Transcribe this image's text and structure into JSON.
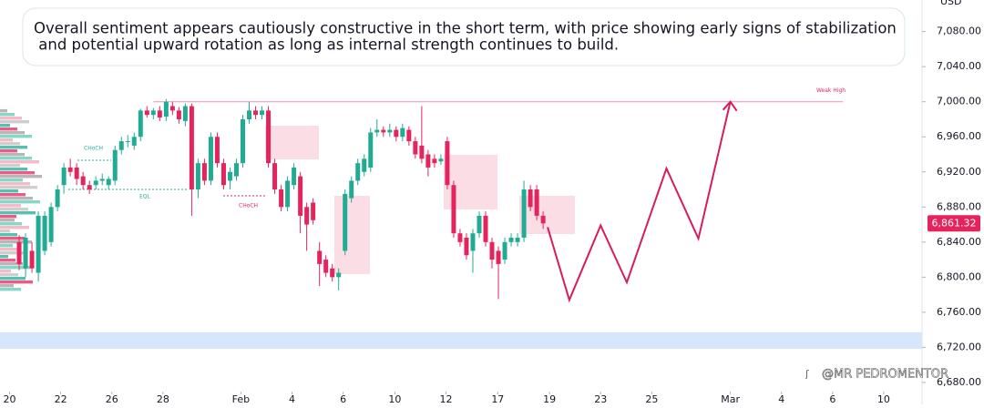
{
  "commentary": {
    "lines": [
      "Overall sentiment appears cautiously constructive in the short term, with price showing early signs of stabilization",
      " and potential upward rotation as long as internal strength continues to build."
    ]
  },
  "chart_data": {
    "type": "candlestick",
    "currency": "USD",
    "up_color": "#22ab94",
    "down_color": "#e5245e",
    "x": [
      3,
      4,
      5,
      6,
      7,
      8,
      9,
      10,
      11,
      12,
      13,
      14,
      15,
      16,
      17,
      18,
      19,
      20,
      21,
      22,
      23,
      24,
      25,
      26,
      27,
      28,
      29,
      30,
      31,
      32,
      33,
      34,
      35,
      36,
      37,
      38,
      39,
      40,
      41,
      42,
      43,
      44,
      45,
      46,
      47,
      48,
      49,
      50,
      51,
      52,
      53,
      54,
      55,
      56,
      57,
      58,
      59,
      60,
      61,
      62,
      63,
      64,
      65,
      66,
      67,
      68,
      69,
      70,
      71,
      72,
      73,
      74,
      75,
      76,
      77,
      78,
      79,
      80,
      81,
      82,
      83,
      84,
      85
    ],
    "open": [
      6840,
      6810,
      6830,
      6805,
      6830,
      6840,
      6880,
      6905,
      6925,
      6925,
      6915,
      6905,
      6905,
      6910,
      6905,
      6910,
      6945,
      6955,
      6950,
      6960,
      6990,
      6985,
      6990,
      6983,
      6995,
      6990,
      6978,
      6995,
      6900,
      6930,
      6910,
      6960,
      6930,
      6910,
      6915,
      6930,
      6980,
      6990,
      6985,
      6990,
      6930,
      6900,
      6880,
      6905,
      6915,
      6880,
      6885,
      6830,
      6820,
      6810,
      6800,
      6830,
      6890,
      6910,
      6920,
      6925,
      6965,
      6968,
      6965,
      6968,
      6960,
      6968,
      6955,
      6950,
      6940,
      6935,
      6932,
      6955,
      6905,
      6850,
      6845,
      6830,
      6850,
      6870,
      6840,
      6830,
      6820,
      6840,
      6840,
      6845,
      6900,
      6900,
      6870
    ],
    "high": [
      6848,
      6850,
      6840,
      6875,
      6875,
      6885,
      6905,
      6930,
      6935,
      6930,
      6920,
      6910,
      6915,
      6918,
      6915,
      6950,
      6960,
      6962,
      6965,
      6992,
      6995,
      6993,
      6995,
      7003,
      7000,
      6994,
      6998,
      6998,
      6935,
      6935,
      6965,
      6965,
      6935,
      6925,
      6935,
      6985,
      7000,
      6995,
      6995,
      6995,
      6935,
      6905,
      6915,
      6930,
      6920,
      6885,
      6890,
      6840,
      6825,
      6815,
      6810,
      6900,
      6915,
      6935,
      6940,
      6970,
      6980,
      6972,
      6975,
      6972,
      6975,
      6972,
      6960,
      6995,
      6945,
      6940,
      6940,
      6960,
      6910,
      6855,
      6850,
      6855,
      6875,
      6875,
      6845,
      6835,
      6845,
      6850,
      6850,
      6910,
      6905,
      6905,
      6875
    ],
    "low": [
      6808,
      6800,
      6805,
      6795,
      6825,
      6835,
      6875,
      6895,
      6915,
      6905,
      6900,
      6895,
      6900,
      6905,
      6900,
      6905,
      6940,
      6948,
      6945,
      6955,
      6982,
      6980,
      6978,
      6978,
      6985,
      6975,
      6972,
      6870,
      6890,
      6905,
      6905,
      6925,
      6900,
      6900,
      6910,
      6925,
      6975,
      6980,
      6980,
      6925,
      6895,
      6875,
      6875,
      6900,
      6850,
      6830,
      6860,
      6790,
      6800,
      6795,
      6785,
      6825,
      6885,
      6905,
      6915,
      6920,
      6960,
      6960,
      6960,
      6955,
      6955,
      6950,
      6935,
      6930,
      6915,
      6925,
      6928,
      6900,
      6845,
      6835,
      6820,
      6805,
      6845,
      6835,
      6810,
      6775,
      6815,
      6835,
      6835,
      6840,
      6875,
      6865,
      6855
    ],
    "close": [
      6815,
      6845,
      6810,
      6870,
      6870,
      6880,
      6900,
      6925,
      6920,
      6912,
      6905,
      6900,
      6910,
      6912,
      6912,
      6945,
      6955,
      6955,
      6960,
      6990,
      6985,
      6990,
      6982,
      7000,
      6990,
      6980,
      6995,
      6900,
      6930,
      6910,
      6960,
      6930,
      6905,
      6920,
      6930,
      6980,
      6990,
      6985,
      6990,
      6930,
      6900,
      6880,
      6910,
      6925,
      6870,
      6860,
      6865,
      6815,
      6805,
      6800,
      6805,
      6895,
      6910,
      6930,
      6935,
      6965,
      6968,
      6965,
      6968,
      6960,
      6970,
      6955,
      6940,
      6935,
      6925,
      6930,
      6935,
      6905,
      6850,
      6840,
      6825,
      6850,
      6870,
      6840,
      6820,
      6815,
      6840,
      6845,
      6845,
      6900,
      6880,
      6870,
      6861.32
    ],
    "projection": {
      "color": "#d81b60",
      "x": [
        85.7,
        89.1,
        94,
        98.1,
        104.3,
        109.3,
        114.3
      ],
      "values": [
        6857,
        6774,
        6859,
        6794,
        6924,
        6844,
        7000
      ]
    },
    "levels": [
      {
        "value": 7000,
        "label": "Weak High"
      }
    ],
    "annotations": [
      "CHoCH",
      "EQL",
      "CHoCH"
    ],
    "last_price": {
      "value": 6861.32,
      "label": "6,861.32"
    },
    "xlim": [
      0,
      144.3
    ],
    "ylim": [
      6655,
      7116
    ],
    "xticks": [
      {
        "value": 1.5,
        "label": "20"
      },
      {
        "value": 9.5,
        "label": "22"
      },
      {
        "value": 17.5,
        "label": "26"
      },
      {
        "value": 25.5,
        "label": "28"
      },
      {
        "value": 37.7,
        "label": "Feb"
      },
      {
        "value": 45.7,
        "label": "4"
      },
      {
        "value": 53.7,
        "label": "6"
      },
      {
        "value": 61.8,
        "label": "10"
      },
      {
        "value": 69.8,
        "label": "12"
      },
      {
        "value": 77.9,
        "label": "17"
      },
      {
        "value": 86,
        "label": "19"
      },
      {
        "value": 94,
        "label": "23"
      },
      {
        "value": 102,
        "label": "25"
      },
      {
        "value": 114.3,
        "label": "Mar"
      },
      {
        "value": 122.3,
        "label": "4"
      },
      {
        "value": 130.3,
        "label": "6"
      },
      {
        "value": 138.3,
        "label": "10"
      }
    ],
    "yticks": [
      {
        "value": 7080,
        "label": "7,080.00"
      },
      {
        "value": 7040,
        "label": "7,040.00"
      },
      {
        "value": 7000,
        "label": "7,000.00"
      },
      {
        "value": 6960,
        "label": "6,960.00"
      },
      {
        "value": 6920,
        "label": "6,920.00"
      },
      {
        "value": 6880,
        "label": "6,880.00"
      },
      {
        "value": 6840,
        "label": "6,840.00"
      },
      {
        "value": 6800,
        "label": "6,800.00"
      },
      {
        "value": 6760,
        "label": "6,760.00"
      },
      {
        "value": 6720,
        "label": "6,720.00"
      },
      {
        "value": 6680,
        "label": "6,680.00"
      }
    ],
    "watermark": "@MR PEDROMENTOR"
  }
}
